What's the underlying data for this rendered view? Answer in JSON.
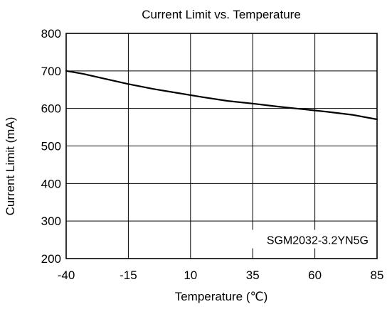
{
  "chart_data": {
    "type": "line",
    "title": "Current Limit vs. Temperature",
    "xlabel": "Temperature (℃)",
    "ylabel": "Current Limit (mA)",
    "xlim": [
      -40,
      85
    ],
    "ylim": [
      200,
      800
    ],
    "xticks": [
      -40,
      -15,
      10,
      35,
      60,
      85
    ],
    "yticks": [
      200,
      300,
      400,
      500,
      600,
      700,
      800
    ],
    "grid": true,
    "annotation": "SGM2032-3.2YN5G",
    "series": [
      {
        "x": [
          -40,
          -33,
          -25,
          -15,
          -5,
          5,
          15,
          25,
          35,
          45,
          55,
          65,
          75,
          85
        ],
        "y": [
          700,
          692,
          680,
          665,
          652,
          641,
          630,
          620,
          613,
          605,
          598,
          591,
          583,
          571
        ]
      }
    ],
    "colors": {
      "line": "#000000",
      "grid": "#000000",
      "frame": "#000000"
    }
  }
}
